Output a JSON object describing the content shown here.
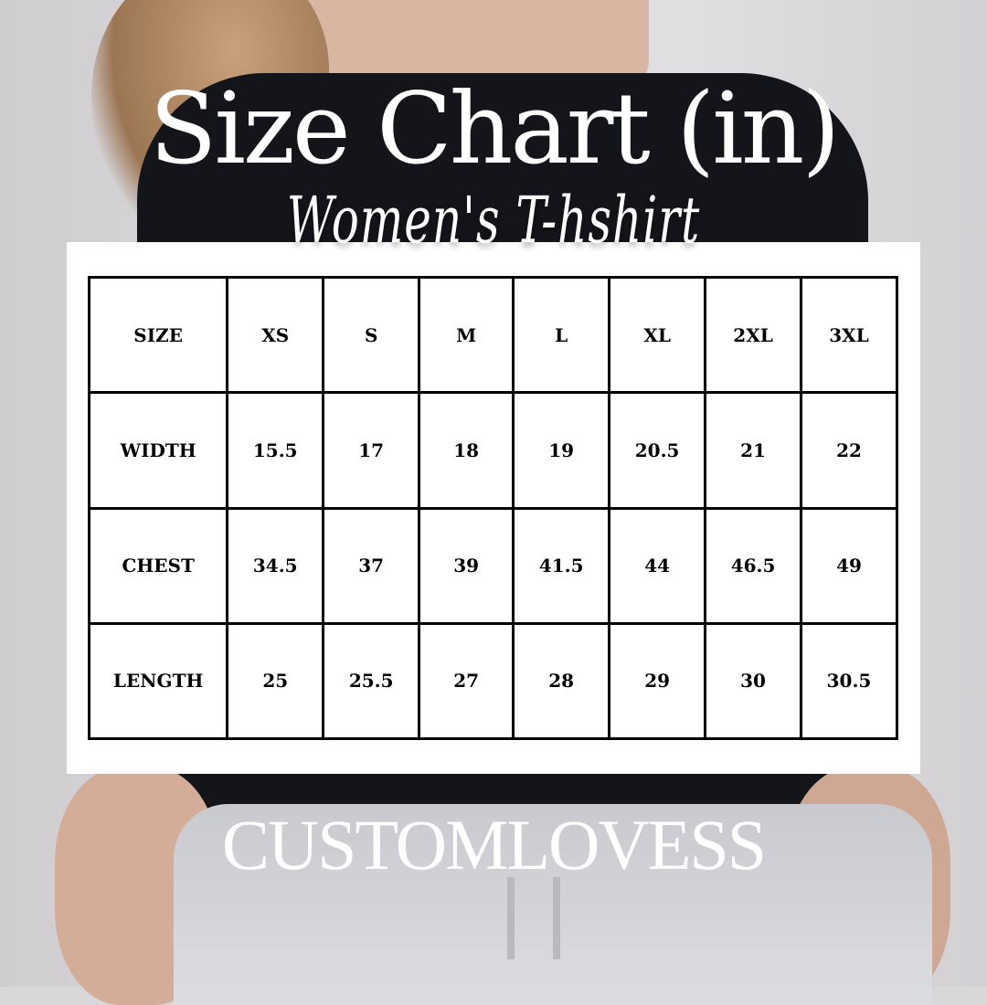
{
  "header": {
    "title": "Size Chart (in)",
    "subtitle": "Women's T-hshirt"
  },
  "table": {
    "columns": [
      "SIZE",
      "XS",
      "S",
      "M",
      "L",
      "XL",
      "2XL",
      "3XL"
    ],
    "rows": [
      {
        "label": "WIDTH",
        "values": [
          "15.5",
          "17",
          "18",
          "19",
          "20.5",
          "21",
          "22"
        ]
      },
      {
        "label": "CHEST",
        "values": [
          "34.5",
          "37",
          "39",
          "41.5",
          "44",
          "46.5",
          "49"
        ]
      },
      {
        "label": "LENGTH",
        "values": [
          "25",
          "25.5",
          "27",
          "28",
          "29",
          "30",
          "30.5"
        ]
      }
    ]
  },
  "footer": {
    "brand": "CUSTOMLOVESS"
  },
  "colors": {
    "text_overlay": "#ffffff",
    "panel": "#ffffff",
    "grid": "#000000",
    "shirt": "#14151b"
  }
}
